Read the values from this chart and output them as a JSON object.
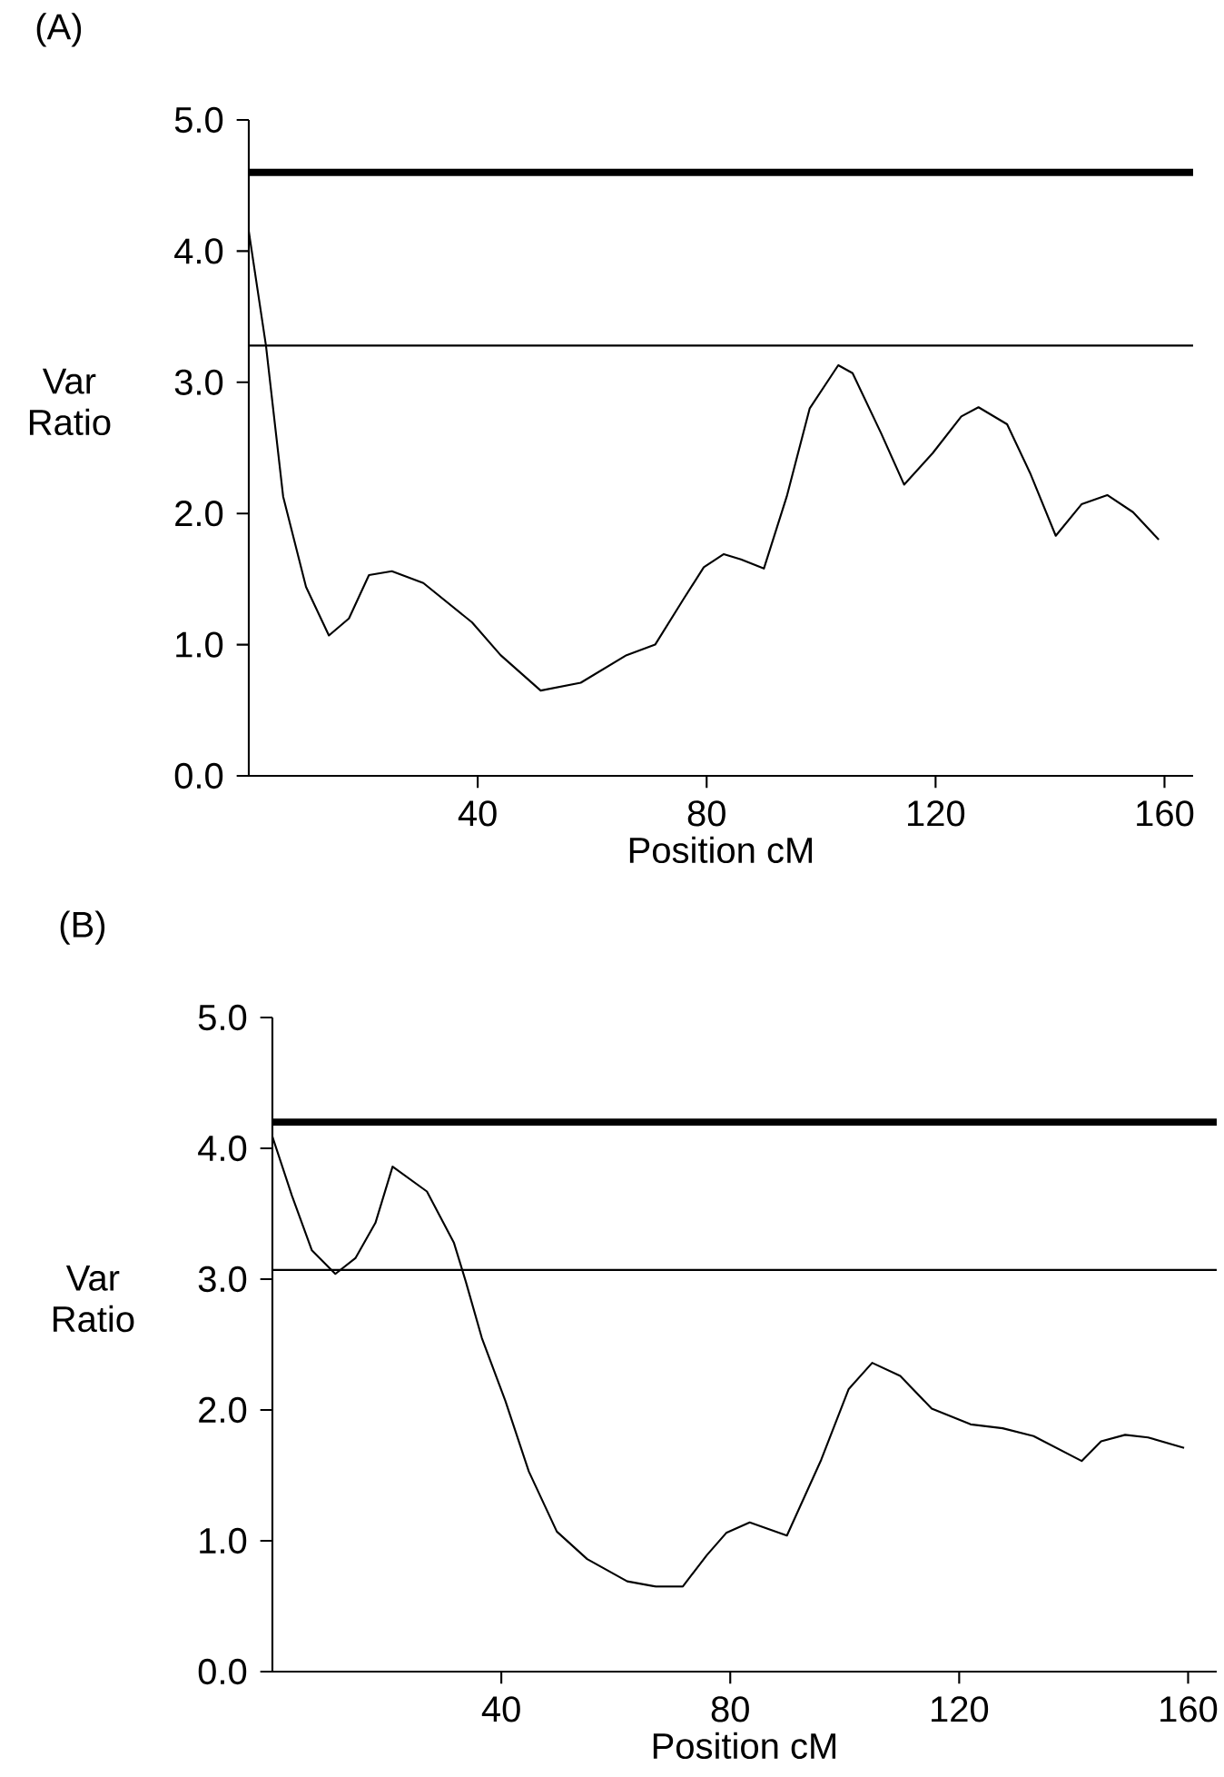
{
  "chart_data": [
    {
      "type": "line",
      "title": "(A)",
      "xlabel": "Position cM",
      "ylabel": "Var Ratio",
      "xlim": [
        0,
        165
      ],
      "xticks": [
        40,
        80,
        120,
        160
      ],
      "ylim": [
        0,
        5
      ],
      "yticks": [
        {
          "value": 0,
          "label": "0.0"
        },
        {
          "value": 1,
          "label": "1.0"
        },
        {
          "value": 2,
          "label": "2.0"
        },
        {
          "value": 3,
          "label": "3.0"
        },
        {
          "value": 4,
          "label": "4.0"
        },
        {
          "value": 5,
          "label": "5.0"
        }
      ],
      "ref_lines": [
        {
          "axis": "y",
          "value": 4.6,
          "color": "#000000"
        },
        {
          "axis": "y",
          "value": 3.28,
          "color": "#000000"
        }
      ],
      "series": [
        {
          "color": "#000000",
          "x": [
            0,
            3,
            6,
            10,
            14,
            17.5,
            21,
            25,
            30.5,
            39,
            44,
            51,
            58,
            66,
            71,
            76,
            79.5,
            83,
            86,
            90,
            94,
            98,
            103,
            105.5,
            110.5,
            114.5,
            119.5,
            124.5,
            127.5,
            132.5,
            136.5,
            141,
            145.5,
            150,
            154.5,
            159
          ],
          "values": [
            4.15,
            3.28,
            2.13,
            1.44,
            1.07,
            1.2,
            1.53,
            1.56,
            1.47,
            1.17,
            0.92,
            0.65,
            0.71,
            0.92,
            1.0,
            1.35,
            1.59,
            1.69,
            1.65,
            1.58,
            2.13,
            2.8,
            3.13,
            3.07,
            2.61,
            2.22,
            2.46,
            2.74,
            2.81,
            2.68,
            2.31,
            1.83,
            2.07,
            2.14,
            2.01,
            1.8
          ]
        }
      ]
    },
    {
      "type": "line",
      "title": "(B)",
      "xlabel": "Position cM",
      "ylabel": "Var Ratio",
      "xlim": [
        0,
        165
      ],
      "xticks": [
        40,
        80,
        120,
        160
      ],
      "ylim": [
        0,
        5
      ],
      "yticks": [
        {
          "value": 0,
          "label": "0.0"
        },
        {
          "value": 1,
          "label": "1.0"
        },
        {
          "value": 2,
          "label": "2.0"
        },
        {
          "value": 3,
          "label": "3.0"
        },
        {
          "value": 4,
          "label": "4.0"
        },
        {
          "value": 5,
          "label": "5.0"
        }
      ],
      "ref_lines": [
        {
          "axis": "y",
          "value": 4.2,
          "color": "#000000"
        },
        {
          "axis": "y",
          "value": 3.07,
          "color": "#000000"
        }
      ],
      "series": [
        {
          "color": "#000000",
          "x": [
            0,
            3.4,
            6.9,
            11,
            14.5,
            18,
            21,
            27,
            31.7,
            33.8,
            36.6,
            40.7,
            44.8,
            49.7,
            55,
            62,
            67,
            71.7,
            75.9,
            79.3,
            83.4,
            89.9,
            95.9,
            100.7,
            104.8,
            109.7,
            115.2,
            122,
            127.6,
            133,
            141.4,
            144.8,
            149,
            153,
            159.3
          ],
          "values": [
            4.09,
            3.64,
            3.22,
            3.04,
            3.16,
            3.43,
            3.86,
            3.67,
            3.28,
            2.98,
            2.55,
            2.07,
            1.53,
            1.07,
            0.86,
            0.69,
            0.65,
            0.65,
            0.89,
            1.06,
            1.14,
            1.04,
            1.62,
            2.16,
            2.36,
            2.26,
            2.01,
            1.89,
            1.86,
            1.8,
            1.61,
            1.76,
            1.81,
            1.79,
            1.71
          ]
        }
      ]
    }
  ]
}
